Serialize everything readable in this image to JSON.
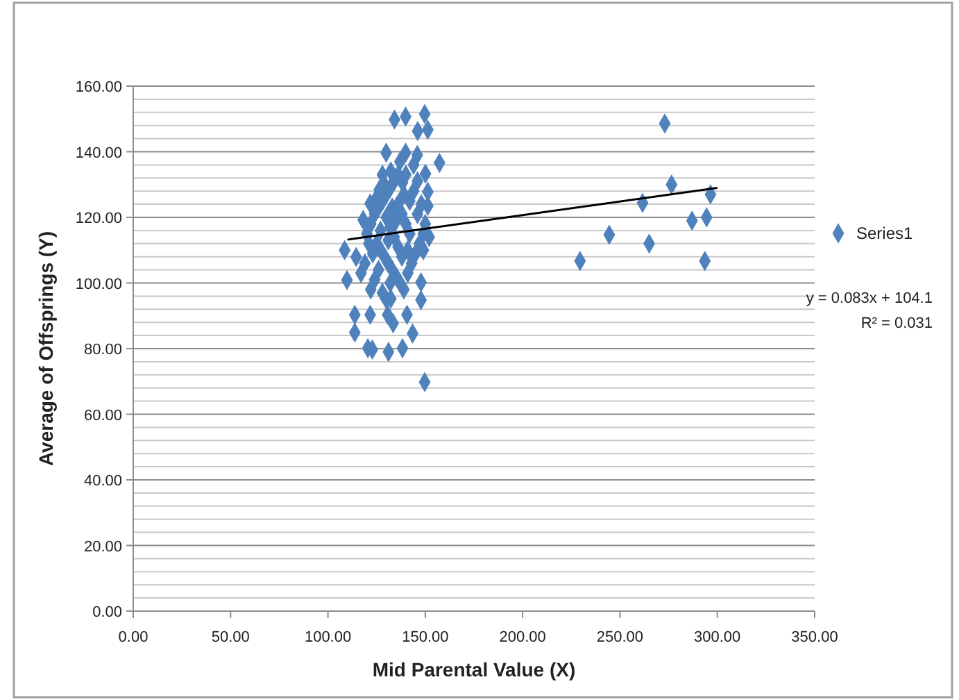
{
  "chart_data": {
    "type": "scatter",
    "xlabel": "Mid Parental Value (X)",
    "ylabel": "Average of Offsprings (Y)",
    "xlim": [
      0,
      350
    ],
    "xticks": [
      {
        "value": 0,
        "label": "0.00"
      },
      {
        "value": 50,
        "label": "50.00"
      },
      {
        "value": 100,
        "label": "100.00"
      },
      {
        "value": 150,
        "label": "150.00"
      },
      {
        "value": 200,
        "label": "200.00"
      },
      {
        "value": 250,
        "label": "250.00"
      },
      {
        "value": 300,
        "label": "300.00"
      },
      {
        "value": 350,
        "label": "350.00"
      }
    ],
    "ylim": [
      0,
      160
    ],
    "yticks": [
      {
        "value": 0,
        "label": "0.00"
      },
      {
        "value": 4,
        "label": null
      },
      {
        "value": 8,
        "label": null
      },
      {
        "value": 12,
        "label": null
      },
      {
        "value": 16,
        "label": null
      },
      {
        "value": 20,
        "label": "20.00"
      },
      {
        "value": 24,
        "label": null
      },
      {
        "value": 28,
        "label": null
      },
      {
        "value": 32,
        "label": null
      },
      {
        "value": 36,
        "label": null
      },
      {
        "value": 40,
        "label": "40.00"
      },
      {
        "value": 44,
        "label": null
      },
      {
        "value": 48,
        "label": null
      },
      {
        "value": 52,
        "label": null
      },
      {
        "value": 56,
        "label": null
      },
      {
        "value": 60,
        "label": "60.00"
      },
      {
        "value": 64,
        "label": null
      },
      {
        "value": 68,
        "label": null
      },
      {
        "value": 72,
        "label": null
      },
      {
        "value": 76,
        "label": null
      },
      {
        "value": 80,
        "label": "80.00"
      },
      {
        "value": 84,
        "label": null
      },
      {
        "value": 88,
        "label": null
      },
      {
        "value": 92,
        "label": null
      },
      {
        "value": 96,
        "label": null
      },
      {
        "value": 100,
        "label": "100.00"
      },
      {
        "value": 104,
        "label": null
      },
      {
        "value": 108,
        "label": null
      },
      {
        "value": 112,
        "label": null
      },
      {
        "value": 116,
        "label": null
      },
      {
        "value": 120,
        "label": "120.00"
      },
      {
        "value": 124,
        "label": null
      },
      {
        "value": 128,
        "label": null
      },
      {
        "value": 132,
        "label": null
      },
      {
        "value": 136,
        "label": null
      },
      {
        "value": 140,
        "label": "140.00"
      },
      {
        "value": 144,
        "label": null
      },
      {
        "value": 148,
        "label": null
      },
      {
        "value": 152,
        "label": null
      },
      {
        "value": 156,
        "label": null
      },
      {
        "value": 160,
        "label": "160.00"
      }
    ],
    "grid": "y",
    "legend": "right",
    "marker": "diamond",
    "annotations": [
      "y = 0.083x + 104.1",
      "R² = 0.031"
    ],
    "series": [
      {
        "name": "Series1",
        "color": "#4f81bd",
        "x": [
          273,
          276.5,
          296.5,
          261.6,
          287,
          294.5,
          244.5,
          265,
          229.5,
          293.6,
          134.2,
          139.9,
          149.7,
          146.1,
          151.3,
          129.9,
          139.9,
          145.9,
          157.3,
          132.3,
          150.1,
          126.4,
          138.3,
          151.3,
          121.7,
          151.3,
          118.1,
          108.6,
          114.5,
          149,
          109.8,
          147.8,
          132.3,
          147.8,
          113.8,
          121.7,
          130.7,
          140.6,
          133.5,
          113.8,
          143.5,
          120.5,
          122.8,
          131.1,
          138.3,
          149.7,
          120,
          122,
          124,
          126,
          128,
          130,
          132,
          134,
          136,
          125,
          127,
          129,
          131,
          133,
          135,
          137,
          139,
          141,
          143,
          145,
          147,
          149,
          140,
          138,
          136,
          142,
          144,
          146,
          140,
          128,
          130,
          132,
          134,
          136,
          138,
          126,
          124,
          122,
          128,
          130,
          132,
          146,
          148,
          150,
          152,
          142,
          144,
          137,
          131,
          127,
          123,
          119,
          117,
          121,
          133,
          135,
          139,
          129,
          125,
          141
        ],
        "values": [
          148.6,
          130,
          127,
          124.4,
          119,
          120,
          114.7,
          112,
          106.7,
          106.7,
          149.8,
          150.7,
          151.5,
          146.3,
          146.7,
          139.7,
          139.7,
          139,
          136.6,
          134,
          133.3,
          128.4,
          130.6,
          127.8,
          124.2,
          123.5,
          119.2,
          110,
          107.9,
          110,
          100.9,
          100.2,
          95.2,
          94.8,
          90.3,
          90.3,
          90.3,
          90.3,
          87.7,
          84.9,
          84.6,
          80.1,
          79.7,
          79,
          80.1,
          69.8,
          115,
          118,
          121,
          123,
          125,
          127,
          129,
          131,
          133,
          112,
          110,
          108,
          106,
          104,
          102,
          100,
          98,
          103,
          106,
          109,
          112,
          115,
          118,
          121,
          124,
          125,
          128,
          131,
          133,
          133,
          120,
          117,
          114,
          111,
          108,
          104,
          101,
          98,
          97,
          95,
          100,
          121,
          124,
          118,
          114,
          115,
          136,
          137,
          113,
          116,
          109,
          106,
          103,
          112,
          123,
          119,
          127,
          130,
          126,
          110
        ]
      },
      {
        "type": "line",
        "color": "#000000",
        "marker": "none",
        "x": [
          110,
          300
        ],
        "values": [
          113.2,
          129.0
        ]
      }
    ]
  }
}
